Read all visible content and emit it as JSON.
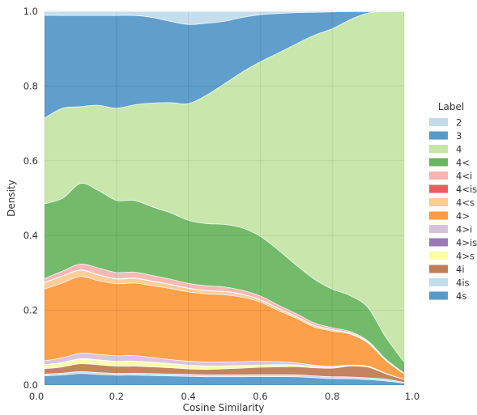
{
  "chart_data": {
    "type": "area",
    "stacked": true,
    "normalized": true,
    "xlabel": "Cosine Similarity",
    "ylabel": "Density",
    "xlim": [
      0.0,
      1.0
    ],
    "ylim": [
      0.0,
      1.0
    ],
    "x_ticks": [
      "0.0",
      "0.2",
      "0.4",
      "0.6",
      "0.8",
      "1.0"
    ],
    "y_ticks": [
      "0.0",
      "0.2",
      "0.4",
      "0.6",
      "0.8",
      "1.0"
    ],
    "grid": true,
    "legend": {
      "title": "Label",
      "position": "right"
    },
    "x": [
      0.0,
      0.05,
      0.1,
      0.15,
      0.2,
      0.25,
      0.3,
      0.35,
      0.4,
      0.45,
      0.5,
      0.55,
      0.6,
      0.65,
      0.7,
      0.75,
      0.8,
      0.85,
      0.9,
      0.95,
      1.0
    ],
    "stack_order": [
      "4s",
      "4is",
      "4i",
      "4>s",
      "4>is",
      "4>i",
      "4>",
      "4<s",
      "4<is",
      "4<i",
      "4<",
      "4",
      "3",
      "2"
    ],
    "series": [
      {
        "name": "2",
        "color": "#c2dcea",
        "values": [
          0.01,
          0.01,
          0.01,
          0.01,
          0.01,
          0.01,
          0.015,
          0.025,
          0.033,
          0.03,
          0.025,
          0.015,
          0.008,
          0.005,
          0.003,
          0.002,
          0.001,
          0.0,
          0.0,
          0.0,
          0.0
        ]
      },
      {
        "name": "3",
        "color": "#5799c9",
        "values": [
          0.272,
          0.242,
          0.232,
          0.232,
          0.238,
          0.228,
          0.218,
          0.208,
          0.203,
          0.185,
          0.16,
          0.14,
          0.12,
          0.1,
          0.08,
          0.06,
          0.045,
          0.022,
          0.004,
          0.0,
          0.0
        ]
      },
      {
        "name": "4",
        "color": "#c6e6a9",
        "values": [
          0.227,
          0.235,
          0.196,
          0.22,
          0.237,
          0.244,
          0.265,
          0.282,
          0.3,
          0.33,
          0.36,
          0.4,
          0.445,
          0.5,
          0.57,
          0.64,
          0.7,
          0.76,
          0.83,
          0.9,
          0.94
        ]
      },
      {
        "name": "4<",
        "color": "#6bb662",
        "values": [
          0.198,
          0.19,
          0.205,
          0.2,
          0.185,
          0.183,
          0.175,
          0.17,
          0.162,
          0.16,
          0.16,
          0.16,
          0.152,
          0.14,
          0.125,
          0.115,
          0.104,
          0.099,
          0.094,
          0.06,
          0.03
        ]
      },
      {
        "name": "4<i",
        "color": "#f8b4b2",
        "values": [
          0.01,
          0.012,
          0.015,
          0.017,
          0.016,
          0.015,
          0.014,
          0.013,
          0.012,
          0.012,
          0.011,
          0.01,
          0.009,
          0.008,
          0.007,
          0.006,
          0.005,
          0.004,
          0.003,
          0.002,
          0.001
        ]
      },
      {
        "name": "4<is",
        "color": "#e85d5d",
        "values": [
          0.001,
          0.001,
          0.001,
          0.001,
          0.001,
          0.001,
          0.001,
          0.001,
          0.001,
          0.001,
          0.001,
          0.001,
          0.001,
          0.001,
          0.001,
          0.001,
          0.001,
          0.001,
          0.001,
          0.001,
          0.0
        ]
      },
      {
        "name": "4<s",
        "color": "#fdcb95",
        "values": [
          0.017,
          0.018,
          0.016,
          0.015,
          0.012,
          0.012,
          0.011,
          0.01,
          0.009,
          0.008,
          0.008,
          0.007,
          0.006,
          0.005,
          0.004,
          0.004,
          0.003,
          0.002,
          0.002,
          0.001,
          0.001
        ]
      },
      {
        "name": "4>",
        "color": "#fd9b40",
        "values": [
          0.19,
          0.195,
          0.195,
          0.19,
          0.185,
          0.185,
          0.183,
          0.182,
          0.178,
          0.175,
          0.172,
          0.165,
          0.15,
          0.13,
          0.115,
          0.1,
          0.095,
          0.085,
          0.065,
          0.035,
          0.015
        ]
      },
      {
        "name": "4>i",
        "color": "#d8c1de",
        "values": [
          0.01,
          0.012,
          0.014,
          0.014,
          0.014,
          0.014,
          0.012,
          0.01,
          0.01,
          0.01,
          0.01,
          0.01,
          0.01,
          0.007,
          0.005,
          0.003,
          0.002,
          0.001,
          0.001,
          0.001,
          0.0
        ]
      },
      {
        "name": "4>is",
        "color": "#9b79b7",
        "values": [
          0.001,
          0.001,
          0.001,
          0.001,
          0.001,
          0.001,
          0.001,
          0.001,
          0.001,
          0.001,
          0.001,
          0.001,
          0.001,
          0.001,
          0.001,
          0.001,
          0.001,
          0.001,
          0.001,
          0.0,
          0.0
        ]
      },
      {
        "name": "4>s",
        "color": "#fefba8",
        "values": [
          0.01,
          0.011,
          0.012,
          0.012,
          0.012,
          0.012,
          0.011,
          0.01,
          0.009,
          0.008,
          0.007,
          0.006,
          0.005,
          0.005,
          0.004,
          0.003,
          0.002,
          0.001,
          0.001,
          0.0,
          0.0
        ]
      },
      {
        "name": "4i",
        "color": "#c07e56",
        "values": [
          0.014,
          0.016,
          0.02,
          0.02,
          0.018,
          0.018,
          0.017,
          0.016,
          0.014,
          0.014,
          0.015,
          0.017,
          0.019,
          0.02,
          0.021,
          0.021,
          0.023,
          0.03,
          0.03,
          0.015,
          0.008
        ]
      },
      {
        "name": "4is",
        "color": "#c2dcea",
        "values": [
          0.005,
          0.005,
          0.005,
          0.005,
          0.005,
          0.005,
          0.005,
          0.005,
          0.005,
          0.005,
          0.005,
          0.005,
          0.005,
          0.005,
          0.005,
          0.005,
          0.005,
          0.005,
          0.005,
          0.005,
          0.002
        ]
      },
      {
        "name": "4s",
        "color": "#5799c9",
        "values": [
          0.025,
          0.027,
          0.03,
          0.028,
          0.026,
          0.026,
          0.025,
          0.024,
          0.023,
          0.022,
          0.022,
          0.022,
          0.022,
          0.022,
          0.022,
          0.02,
          0.018,
          0.018,
          0.016,
          0.012,
          0.006
        ]
      }
    ]
  }
}
